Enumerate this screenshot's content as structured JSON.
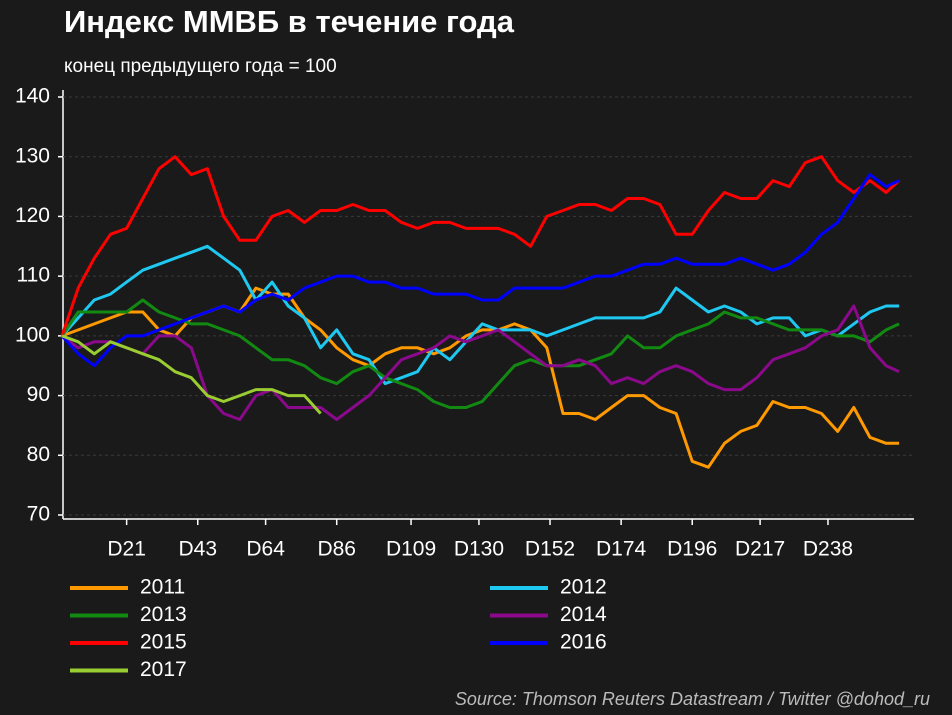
{
  "chart_data": {
    "type": "line",
    "title": "Индекс ММВБ в течение года",
    "subtitle": "конец предыдущего года = 100",
    "source": "Source: Thomson Reuters Datastream / Twitter @dohod_ru",
    "x": [
      1,
      6,
      11,
      16,
      21,
      26,
      31,
      36,
      41,
      46,
      51,
      56,
      61,
      66,
      71,
      76,
      81,
      86,
      91,
      96,
      101,
      106,
      111,
      116,
      121,
      126,
      131,
      136,
      141,
      146,
      151,
      156,
      161,
      166,
      171,
      176,
      181,
      186,
      191,
      196,
      201,
      206,
      211,
      216,
      221,
      226,
      231,
      236,
      241,
      246,
      251,
      256,
      260
    ],
    "xlim": [
      1,
      264
    ],
    "xticks": [
      {
        "value": 21,
        "label": "D21"
      },
      {
        "value": 43,
        "label": "D43"
      },
      {
        "value": 64,
        "label": "D64"
      },
      {
        "value": 86,
        "label": "D86"
      },
      {
        "value": 109,
        "label": "D109"
      },
      {
        "value": 130,
        "label": "D130"
      },
      {
        "value": 152,
        "label": "D152"
      },
      {
        "value": 174,
        "label": "D174"
      },
      {
        "value": 196,
        "label": "D196"
      },
      {
        "value": 217,
        "label": "D217"
      },
      {
        "value": 238,
        "label": "D238"
      }
    ],
    "ylim": [
      70,
      140
    ],
    "yticks": [
      70,
      80,
      90,
      100,
      110,
      120,
      130,
      140
    ],
    "grid": true,
    "series": [
      {
        "name": "2011",
        "color": "#ff9900",
        "values": [
          100,
          101,
          102,
          103,
          104,
          104,
          101,
          100,
          103,
          104,
          105,
          104,
          108,
          107,
          107,
          103,
          101,
          98,
          96,
          95,
          97,
          98,
          98,
          97,
          98,
          100,
          101,
          101,
          102,
          101,
          98,
          87,
          87,
          86,
          88,
          90,
          90,
          88,
          87,
          79,
          78,
          82,
          84,
          85,
          89,
          88,
          88,
          87,
          84,
          88,
          83,
          82,
          82
        ]
      },
      {
        "name": "2012",
        "color": "#1ec8f0",
        "values": [
          100,
          103,
          106,
          107,
          109,
          111,
          112,
          113,
          114,
          115,
          113,
          111,
          106,
          109,
          105,
          103,
          98,
          101,
          97,
          96,
          92,
          93,
          94,
          98,
          96,
          99,
          102,
          101,
          101,
          101,
          100,
          101,
          102,
          103,
          103,
          103,
          103,
          104,
          108,
          106,
          104,
          105,
          104,
          102,
          103,
          103,
          100,
          101,
          100,
          102,
          104,
          105,
          105
        ]
      },
      {
        "name": "2013",
        "color": "#128a12",
        "values": [
          100,
          104,
          104,
          104,
          104,
          106,
          104,
          103,
          102,
          102,
          101,
          100,
          98,
          96,
          96,
          95,
          93,
          92,
          94,
          95,
          93,
          92,
          91,
          89,
          88,
          88,
          89,
          92,
          95,
          96,
          95,
          95,
          95,
          96,
          97,
          100,
          98,
          98,
          100,
          101,
          102,
          104,
          103,
          103,
          102,
          101,
          101,
          101,
          100,
          100,
          99,
          101,
          102
        ]
      },
      {
        "name": "2014",
        "color": "#8b0a8b",
        "values": [
          100,
          98,
          99,
          99,
          98,
          97,
          100,
          100,
          98,
          90,
          87,
          86,
          90,
          91,
          88,
          88,
          88,
          86,
          88,
          90,
          93,
          96,
          97,
          98,
          100,
          99,
          100,
          101,
          99,
          97,
          95,
          95,
          96,
          95,
          92,
          93,
          92,
          94,
          95,
          94,
          92,
          91,
          91,
          93,
          96,
          97,
          98,
          100,
          101,
          105,
          98,
          95,
          94
        ]
      },
      {
        "name": "2015",
        "color": "#ff0000",
        "values": [
          100,
          108,
          113,
          117,
          118,
          123,
          128,
          130,
          127,
          128,
          120,
          116,
          116,
          120,
          121,
          119,
          121,
          121,
          122,
          121,
          121,
          119,
          118,
          119,
          119,
          118,
          118,
          118,
          117,
          115,
          120,
          121,
          122,
          122,
          121,
          123,
          123,
          122,
          117,
          117,
          121,
          124,
          123,
          123,
          126,
          125,
          129,
          130,
          126,
          124,
          126,
          124,
          126
        ]
      },
      {
        "name": "2016",
        "color": "#0000ff",
        "values": [
          100,
          97,
          95,
          98,
          100,
          100,
          101,
          102,
          103,
          104,
          105,
          104,
          106,
          107,
          106,
          108,
          109,
          110,
          110,
          109,
          109,
          108,
          108,
          107,
          107,
          107,
          106,
          106,
          108,
          108,
          108,
          108,
          109,
          110,
          110,
          111,
          112,
          112,
          113,
          112,
          112,
          112,
          113,
          112,
          111,
          112,
          114,
          117,
          119,
          123,
          127,
          125,
          126
        ]
      },
      {
        "name": "2017",
        "color": "#9acd32",
        "values": [
          100,
          99,
          97,
          99,
          98,
          97,
          96,
          94,
          93,
          90,
          89,
          90,
          91,
          91,
          90,
          90,
          87,
          null,
          null,
          null,
          null,
          null,
          null,
          null,
          null,
          null,
          null,
          null,
          null,
          null,
          null,
          null,
          null,
          null,
          null,
          null,
          null,
          null,
          null,
          null,
          null,
          null,
          null,
          null,
          null,
          null,
          null,
          null,
          null,
          null,
          null,
          null,
          null
        ]
      }
    ]
  }
}
